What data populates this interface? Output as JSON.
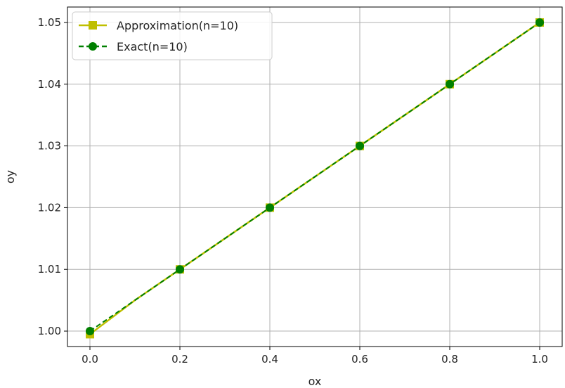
{
  "chart_data": {
    "type": "line",
    "title": "",
    "xlabel": "ox",
    "ylabel": "oy",
    "xlim": [
      -0.05,
      1.05
    ],
    "ylim": [
      0.9975,
      1.0525
    ],
    "x": [
      0.0,
      0.1,
      0.2,
      0.3,
      0.4,
      0.5,
      0.6,
      0.7,
      0.8,
      0.9,
      1.0
    ],
    "xticks": [
      0.0,
      0.2,
      0.4,
      0.6,
      0.8,
      1.0
    ],
    "xtick_labels": [
      "0.0",
      "0.2",
      "0.4",
      "0.6",
      "0.8",
      "1.0"
    ],
    "yticks": [
      1.0,
      1.01,
      1.02,
      1.03,
      1.04,
      1.05
    ],
    "ytick_labels": [
      "1.00",
      "1.01",
      "1.02",
      "1.03",
      "1.04",
      "1.05"
    ],
    "grid": true,
    "legend_position": "top-left",
    "series": [
      {
        "name": "Approximation(n=10)",
        "color": "#bfbf00",
        "linestyle": "solid",
        "marker": "square",
        "marker_x": [
          0.0,
          0.2,
          0.4,
          0.6,
          0.8,
          1.0
        ],
        "marker_y": [
          0.9995,
          1.01,
          1.02,
          1.03,
          1.04,
          1.05
        ],
        "values": [
          0.9995,
          1.005,
          1.01,
          1.015,
          1.02,
          1.025,
          1.03,
          1.035,
          1.04,
          1.045,
          1.05
        ]
      },
      {
        "name": "Exact(n=10)",
        "color": "#008000",
        "linestyle": "dashed",
        "marker": "circle",
        "marker_x": [
          0.0,
          0.2,
          0.4,
          0.6,
          0.8,
          1.0
        ],
        "marker_y": [
          1.0,
          1.01,
          1.02,
          1.03,
          1.04,
          1.05
        ],
        "values": [
          1.0,
          1.005,
          1.01,
          1.015,
          1.02,
          1.025,
          1.03,
          1.035,
          1.04,
          1.045,
          1.05
        ]
      }
    ]
  }
}
